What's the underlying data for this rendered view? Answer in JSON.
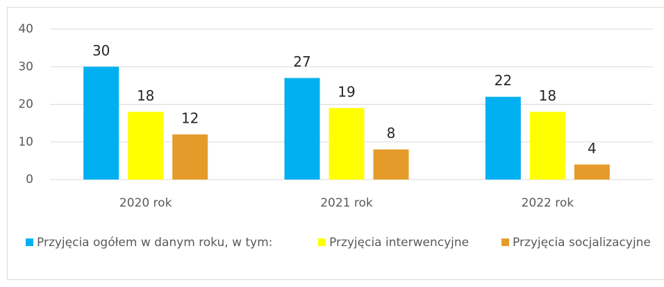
{
  "chart_data": {
    "type": "bar",
    "categories": [
      "2020 rok",
      "2021 rok",
      "2022 rok"
    ],
    "series": [
      {
        "name": "Przyjęcia ogółem w danym roku, w tym:",
        "color": "#00b0f0",
        "values": [
          30,
          27,
          22
        ]
      },
      {
        "name": "Przyjęcia interwencyjne",
        "color": "#ffff00",
        "values": [
          18,
          19,
          18
        ]
      },
      {
        "name": "Przyjęcia socjalizacyjne",
        "color": "#e59b2a",
        "values": [
          12,
          8,
          4
        ]
      }
    ],
    "ylim": [
      0,
      40
    ],
    "yticks": [
      0,
      10,
      20,
      30,
      40
    ],
    "grid": true,
    "legend": "bottom"
  }
}
